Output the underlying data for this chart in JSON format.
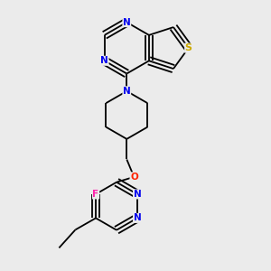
{
  "bg_color": "#ebebeb",
  "atom_colors": {
    "N": "#0000ee",
    "S": "#ccaa00",
    "O": "#ff2200",
    "F": "#ff22aa",
    "C": "#000000"
  }
}
